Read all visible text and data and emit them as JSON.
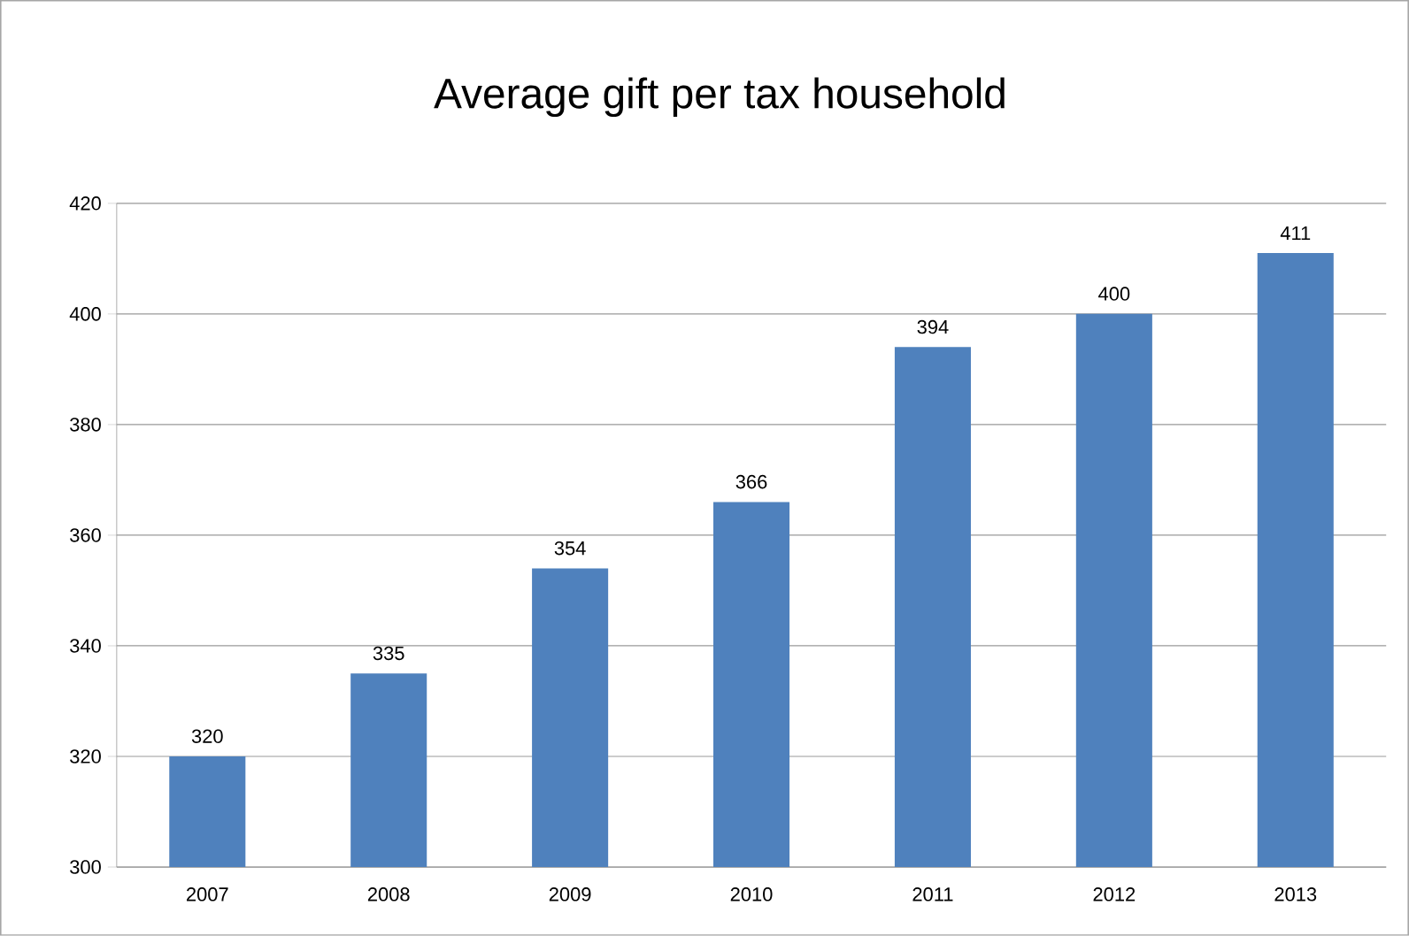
{
  "chart_data": {
    "type": "bar",
    "title": "Average gift per tax household",
    "categories": [
      "2007",
      "2008",
      "2009",
      "2010",
      "2011",
      "2012",
      "2013"
    ],
    "values": [
      320,
      335,
      354,
      366,
      394,
      400,
      411
    ],
    "color": "#4f81bd",
    "ylim": [
      300,
      420
    ],
    "yticks": [
      300,
      320,
      340,
      360,
      380,
      400,
      420
    ],
    "grid": "y",
    "data_labels": true
  }
}
